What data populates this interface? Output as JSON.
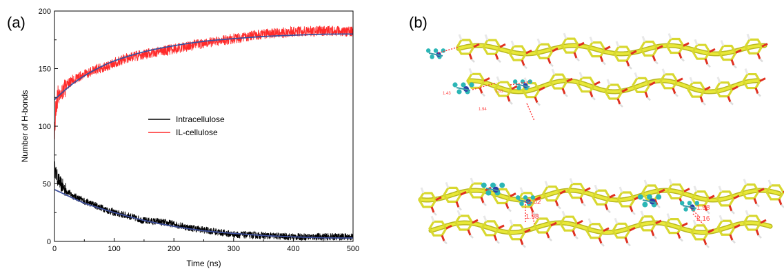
{
  "panels": {
    "a_label": "(a)",
    "b_label": "(b)"
  },
  "chart_data": {
    "type": "line",
    "xlabel": "Time (ns)",
    "ylabel": "Number of H-bonds",
    "xlim": [
      0,
      500
    ],
    "ylim": [
      0,
      200
    ],
    "xticks": [
      0,
      100,
      200,
      300,
      400,
      500
    ],
    "yticks": [
      0,
      50,
      100,
      150,
      200
    ],
    "grid": false,
    "legend_position": "center",
    "series": [
      {
        "name": "Intracellulose",
        "color": "#000000",
        "x": [
          0,
          2,
          5,
          10,
          20,
          30,
          50,
          75,
          100,
          125,
          150,
          175,
          200,
          225,
          250,
          275,
          300,
          350,
          400,
          450,
          500
        ],
        "y": [
          65,
          60,
          55,
          50,
          44,
          40,
          35,
          30,
          25,
          22,
          18,
          17,
          15,
          12,
          10,
          8,
          6,
          5,
          4,
          4,
          4
        ]
      },
      {
        "name": "IL-cellulose",
        "color": "#ff2a2a",
        "x": [
          0,
          2,
          5,
          10,
          20,
          30,
          50,
          75,
          100,
          125,
          150,
          175,
          200,
          250,
          300,
          350,
          400,
          450,
          500
        ],
        "y": [
          90,
          115,
          125,
          130,
          135,
          140,
          145,
          150,
          155,
          160,
          162,
          165,
          167,
          172,
          176,
          180,
          182,
          183,
          182
        ]
      },
      {
        "color": "#3d4f9c",
        "x": [
          0,
          25,
          50,
          75,
          100,
          150,
          200,
          250,
          300,
          350,
          400,
          450,
          500
        ],
        "y": [
          123,
          135,
          144,
          151,
          157,
          165,
          170,
          174,
          176,
          178,
          179,
          180,
          180
        ]
      },
      {
        "color": "#3d4f9c",
        "x": [
          0,
          25,
          50,
          75,
          100,
          150,
          200,
          250,
          300,
          350,
          400,
          450,
          500
        ],
        "y": [
          45,
          39,
          33,
          29,
          25,
          18,
          13,
          9,
          7,
          5,
          4,
          3,
          3
        ]
      }
    ]
  },
  "molecule": {
    "label_top_1": "1.43",
    "label_top_2": "1.81",
    "label_top_3": "1.94",
    "label_bottom_1": "2.02",
    "label_bottom_2": "1.98",
    "label_bottom_3": "1.98",
    "label_bottom_4": "2.16"
  }
}
